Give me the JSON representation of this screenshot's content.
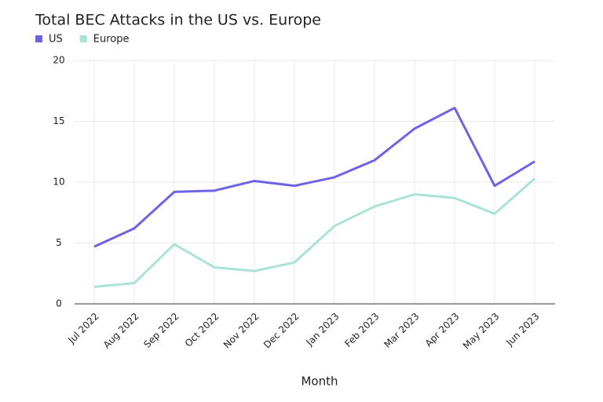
{
  "chart_data": {
    "type": "line",
    "title": "Total BEC Attacks in the US vs. Europe",
    "x_label": "Month",
    "categories": [
      "Jul 2022",
      "Aug 2022",
      "Sep 2022",
      "Oct 2022",
      "Nov 2022",
      "Dec 2022",
      "Jan 2023",
      "Feb 2023",
      "Mar 2023",
      "Apr 2023",
      "May 2023",
      "Jun 2023"
    ],
    "series": [
      {
        "name": "US",
        "color": "#6c63e6",
        "values": [
          4.7,
          6.2,
          9.2,
          9.3,
          10.1,
          9.7,
          10.4,
          11.8,
          14.4,
          16.1,
          9.7,
          11.7
        ]
      },
      {
        "name": "Europe",
        "color": "#a8e3d6",
        "values": [
          1.4,
          1.7,
          4.9,
          3.0,
          2.7,
          3.4,
          6.4,
          8.0,
          9.0,
          8.7,
          7.4,
          10.3
        ]
      }
    ],
    "ylim": [
      0,
      20
    ],
    "yticks": [
      0,
      5,
      10,
      15,
      20
    ],
    "grid": true,
    "legend": "top-left"
  }
}
